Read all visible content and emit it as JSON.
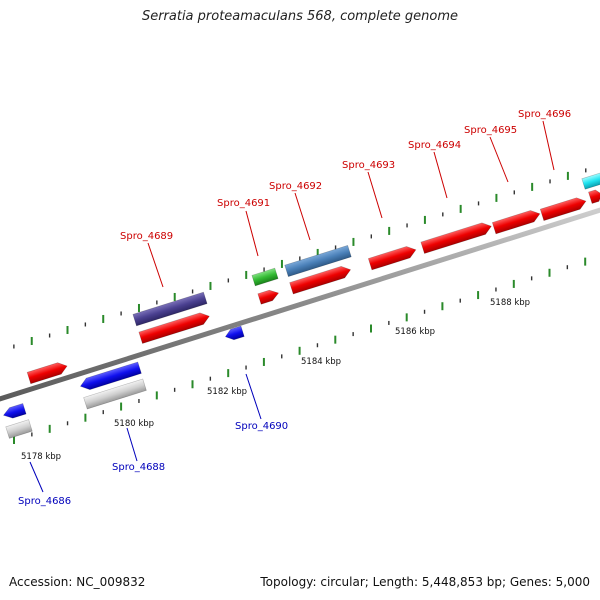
{
  "title": "Serratia proteamaculans 568, complete genome",
  "accession": "Accession: NC_009832",
  "summary": "Topology: circular; Length: 5,448,853 bp; Genes: 5,000",
  "colors": {
    "forward_label": "#cc0000",
    "reverse_label": "#0000bb",
    "backbone": "#8a8a8a",
    "tick_green": "#2a8a2a"
  },
  "ticks": [
    {
      "label": "5178 kbp"
    },
    {
      "label": "5180 kbp"
    },
    {
      "label": "5182 kbp"
    },
    {
      "label": "5184 kbp"
    },
    {
      "label": "5186 kbp"
    },
    {
      "label": "5188 kbp"
    }
  ],
  "forward_labels": [
    "Spro_4689",
    "Spro_4691",
    "Spro_4692",
    "Spro_4693",
    "Spro_4694",
    "Spro_4695",
    "Spro_4696"
  ],
  "reverse_labels": [
    "Spro_4686",
    "Spro_4688",
    "Spro_4690"
  ]
}
